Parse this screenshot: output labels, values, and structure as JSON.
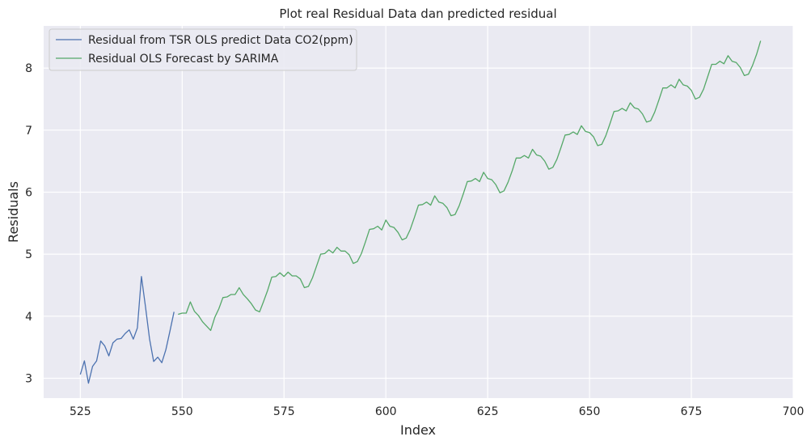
{
  "chart_data": {
    "type": "line",
    "title": "Plot real Residual Data dan predicted residual",
    "xlabel": "Index",
    "ylabel": "Residuals",
    "xlim": [
      516,
      700
    ],
    "ylim": [
      2.68,
      8.68
    ],
    "xticks": [
      525,
      550,
      575,
      600,
      625,
      650,
      675,
      700
    ],
    "yticks": [
      3,
      4,
      5,
      6,
      7,
      8
    ],
    "grid": true,
    "legend_position": "top-left",
    "background": "#eaeaf2",
    "grid_color": "#ffffff",
    "series": [
      {
        "name": "Residual from TSR OLS predict Data CO2(ppm)",
        "color": "#4c72b0",
        "x": [
          525,
          526,
          527,
          528,
          529,
          530,
          531,
          532,
          533,
          534,
          535,
          536,
          537,
          538,
          539,
          540,
          541,
          542,
          543,
          544,
          545,
          546,
          547,
          548
        ],
        "y": [
          3.06,
          3.28,
          2.92,
          3.19,
          3.28,
          3.6,
          3.52,
          3.36,
          3.57,
          3.63,
          3.64,
          3.72,
          3.78,
          3.63,
          3.81,
          4.64,
          4.15,
          3.63,
          3.27,
          3.34,
          3.25,
          3.46,
          3.76,
          4.07
        ]
      },
      {
        "name": "Residual OLS Forecast by SARIMA",
        "color": "#55a868",
        "x": [
          549,
          550,
          551,
          552,
          553,
          554,
          555,
          556,
          557,
          558,
          559,
          560,
          561,
          562,
          563,
          564,
          565,
          566,
          567,
          568,
          569,
          570,
          571,
          572,
          573,
          574,
          575,
          576,
          577,
          578,
          579,
          580,
          581,
          582,
          583,
          584,
          585,
          586,
          587,
          588,
          589,
          590,
          591,
          592,
          593,
          594,
          595,
          596,
          597,
          598,
          599,
          600,
          601,
          602,
          603,
          604,
          605,
          606,
          607,
          608,
          609,
          610,
          611,
          612,
          613,
          614,
          615,
          616,
          617,
          618,
          619,
          620,
          621,
          622,
          623,
          624,
          625,
          626,
          627,
          628,
          629,
          630,
          631,
          632,
          633,
          634,
          635,
          636,
          637,
          638,
          639,
          640,
          641,
          642,
          643,
          644,
          645,
          646,
          647,
          648,
          649,
          650,
          651,
          652,
          653,
          654,
          655,
          656,
          657,
          658,
          659,
          660,
          661,
          662,
          663,
          664,
          665,
          666,
          667,
          668,
          669,
          670,
          671,
          672,
          673,
          674,
          675,
          676,
          677,
          678,
          679,
          680,
          681,
          682,
          683,
          684,
          685,
          686,
          687,
          688,
          689,
          690,
          691,
          692
        ],
        "y": [
          4.03,
          4.05,
          4.05,
          4.23,
          4.08,
          4.01,
          3.91,
          3.84,
          3.77,
          3.98,
          4.12,
          4.3,
          4.31,
          4.35,
          4.35,
          4.46,
          4.35,
          4.28,
          4.2,
          4.1,
          4.07,
          4.24,
          4.42,
          4.63,
          4.64,
          4.7,
          4.64,
          4.71,
          4.65,
          4.65,
          4.6,
          4.46,
          4.48,
          4.62,
          4.81,
          5.0,
          5.01,
          5.07,
          5.02,
          5.11,
          5.05,
          5.05,
          4.99,
          4.85,
          4.88,
          5.01,
          5.2,
          5.4,
          5.41,
          5.45,
          5.39,
          5.55,
          5.45,
          5.43,
          5.35,
          5.23,
          5.26,
          5.4,
          5.59,
          5.79,
          5.8,
          5.84,
          5.79,
          5.94,
          5.84,
          5.82,
          5.75,
          5.62,
          5.64,
          5.78,
          5.97,
          6.17,
          6.18,
          6.22,
          6.17,
          6.32,
          6.22,
          6.2,
          6.12,
          5.99,
          6.02,
          6.16,
          6.34,
          6.55,
          6.55,
          6.59,
          6.55,
          6.69,
          6.6,
          6.58,
          6.5,
          6.37,
          6.4,
          6.53,
          6.72,
          6.92,
          6.93,
          6.97,
          6.93,
          7.07,
          6.98,
          6.96,
          6.89,
          6.75,
          6.77,
          6.91,
          7.1,
          7.3,
          7.31,
          7.35,
          7.31,
          7.44,
          7.36,
          7.34,
          7.26,
          7.13,
          7.15,
          7.29,
          7.48,
          7.68,
          7.68,
          7.73,
          7.68,
          7.82,
          7.73,
          7.71,
          7.64,
          7.5,
          7.53,
          7.66,
          7.86,
          8.06,
          8.06,
          8.11,
          8.07,
          8.2,
          8.11,
          8.09,
          8.01,
          7.88,
          7.9,
          8.04,
          8.22,
          8.44
        ]
      }
    ]
  }
}
